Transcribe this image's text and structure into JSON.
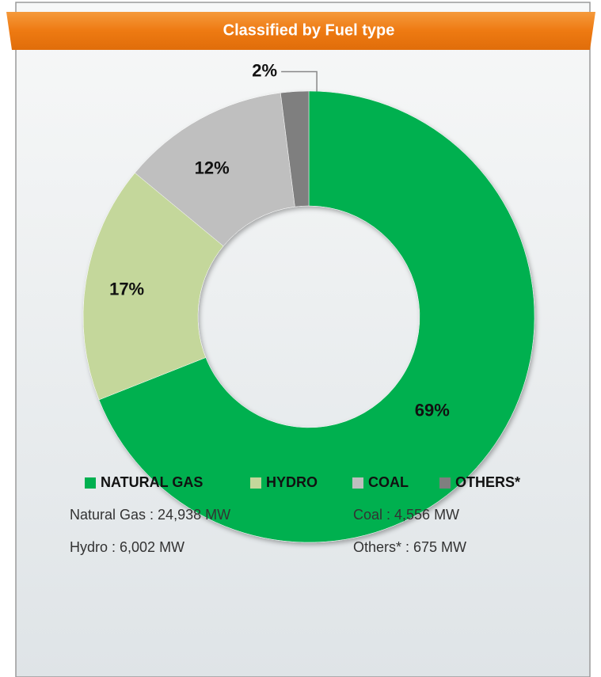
{
  "chart_data": {
    "type": "donut",
    "title": "Classified by Fuel type",
    "categories": [
      "NATURAL GAS",
      "HYDRO",
      "COAL",
      "OTHERS*"
    ],
    "values": [
      69,
      17,
      12,
      2
    ],
    "value_labels": [
      "69%",
      "17%",
      "12%",
      "2%"
    ],
    "colors": [
      "#00b050",
      "#c4d79b",
      "#bfbfbf",
      "#7f7f7f"
    ],
    "legend": "bottom",
    "annotations": [
      "Natural Gas : 24,938 MW",
      "Coal : 4,556 MW",
      "Hydro : 6,002 MW",
      "Others* : 675 MW"
    ]
  }
}
